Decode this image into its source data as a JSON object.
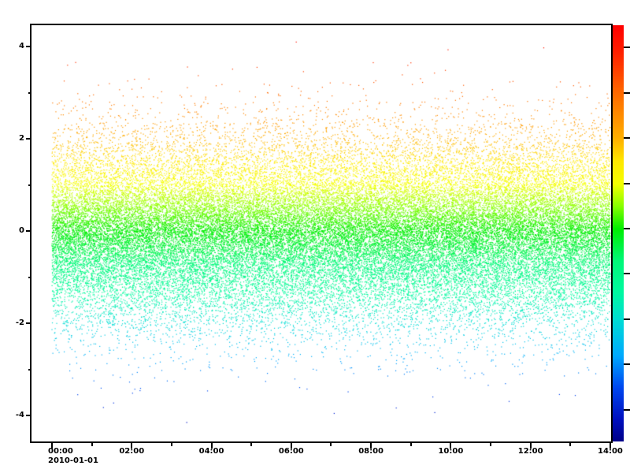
{
  "figure": {
    "background": "#ffffff"
  },
  "chart_data": {
    "type": "scatter",
    "title": "",
    "x_axis": {
      "kind": "time-of-day",
      "date_label": "2010-01-01",
      "major_tick_labels": [
        "00:00",
        "02:00",
        "04:00",
        "06:00",
        "08:00",
        "10:00",
        "12:00",
        "14:00"
      ],
      "major_tick_hours": [
        0,
        2,
        4,
        6,
        8,
        10,
        12,
        14
      ],
      "minor_tick_hours": [
        1,
        3,
        5,
        7,
        9,
        11,
        13
      ],
      "visible_range_hours": [
        -0.51,
        14.02
      ]
    },
    "y_axis": {
      "major_tick_labels": [
        "4",
        "2",
        "0",
        "-2",
        "-4"
      ],
      "major_tick_values": [
        4,
        2,
        0,
        -2,
        -4
      ],
      "minor_tick_values": [
        3,
        1,
        -1,
        -3
      ],
      "visible_range": [
        -4.56,
        4.46
      ]
    },
    "series": [
      {
        "name": "colormapped-point-cloud",
        "marker": "pixel",
        "marker_size_px": 1,
        "n_points": 45000,
        "x_distribution": {
          "kind": "uniform",
          "hours_min": 0,
          "hours_max": 14
        },
        "y_distribution": {
          "kind": "gaussian",
          "mean": 0,
          "sigma": 1.0
        },
        "seed": 20100101,
        "color_by": "y_value"
      }
    ],
    "colormap": {
      "stops": [
        {
          "v": 4.49,
          "color": "#ff0000"
        },
        {
          "v": 3.9,
          "color": "#ff2000"
        },
        {
          "v": 3.0,
          "color": "#ff6a00"
        },
        {
          "v": 2.0,
          "color": "#ffb000"
        },
        {
          "v": 1.5,
          "color": "#ffe800"
        },
        {
          "v": 1.0,
          "color": "#f4ff00"
        },
        {
          "v": 0.5,
          "color": "#86ff00"
        },
        {
          "v": 0.0,
          "color": "#00ee00"
        },
        {
          "v": -0.7,
          "color": "#00f878"
        },
        {
          "v": -1.4,
          "color": "#00f9a0"
        },
        {
          "v": -2.0,
          "color": "#00ddd4"
        },
        {
          "v": -2.8,
          "color": "#00aaff"
        },
        {
          "v": -3.5,
          "color": "#0048f0"
        },
        {
          "v": -4.2,
          "color": "#0010c0"
        },
        {
          "v": -4.7,
          "color": "#000088"
        }
      ]
    },
    "colorbar": {
      "position": "right",
      "range": [
        -4.7,
        4.49
      ],
      "tick_values": [
        4,
        3,
        2,
        1,
        0,
        -1,
        -2,
        -3,
        -4
      ]
    },
    "grid": false,
    "legend": false
  }
}
